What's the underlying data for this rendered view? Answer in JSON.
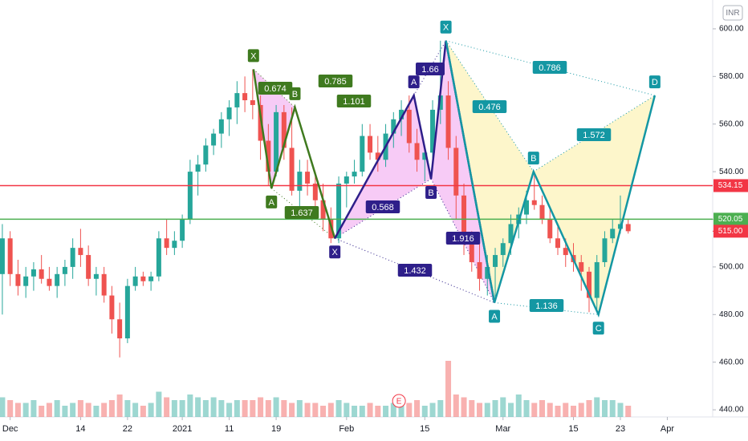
{
  "chart_data": {
    "type": "candlestick",
    "currency": "INR",
    "xlim": [
      -0.3,
      90.8
    ],
    "ylim": [
      437,
      612.1
    ],
    "yticks": [
      {
        "value": 600,
        "label": "600.00"
      },
      {
        "value": 580,
        "label": "580.00"
      },
      {
        "value": 560,
        "label": "560.00"
      },
      {
        "value": 540,
        "label": "540.00"
      },
      {
        "value": 520,
        "label": "520.00"
      },
      {
        "value": 500,
        "label": "500.00"
      },
      {
        "value": 480,
        "label": "480.00"
      },
      {
        "value": 460,
        "label": "460.00"
      },
      {
        "value": 440,
        "label": "440.00"
      }
    ],
    "xticks": [
      {
        "value": 1,
        "label": "Dec"
      },
      {
        "value": 10,
        "label": "14"
      },
      {
        "value": 16,
        "label": "22"
      },
      {
        "value": 23,
        "label": "2021"
      },
      {
        "value": 29,
        "label": "11"
      },
      {
        "value": 35,
        "label": "19"
      },
      {
        "value": 44,
        "label": "Feb"
      },
      {
        "value": 54,
        "label": "15"
      },
      {
        "value": 64,
        "label": "Mar"
      },
      {
        "value": 73,
        "label": "15"
      },
      {
        "value": 79,
        "label": "23"
      },
      {
        "value": 85,
        "label": "Apr"
      }
    ],
    "up_color": "#26a69a",
    "down_color": "#ef5350",
    "open": [
      497,
      512,
      497,
      492,
      496,
      499,
      495,
      492,
      497,
      500,
      508,
      505,
      495,
      497,
      488,
      478,
      470,
      492,
      496,
      494,
      496,
      512,
      508,
      511,
      520,
      540,
      543,
      551,
      556,
      562,
      567,
      573,
      570,
      568,
      553,
      540,
      565,
      550,
      532,
      540,
      535,
      528,
      520,
      512,
      535,
      538,
      540,
      555,
      548,
      545,
      556,
      562,
      566,
      552,
      545,
      548,
      566,
      572,
      550,
      530,
      510,
      502,
      495,
      500,
      505,
      510,
      518,
      522,
      528,
      526,
      520,
      512,
      508,
      505,
      502,
      498,
      487,
      502,
      512,
      516,
      518
    ],
    "high": [
      518,
      515,
      503,
      500,
      502,
      505,
      500,
      500,
      503,
      512,
      516,
      509,
      500,
      500,
      492,
      485,
      495,
      500,
      498,
      498,
      515,
      520,
      515,
      522,
      545,
      547,
      554,
      558,
      565,
      570,
      578,
      580,
      583,
      572,
      560,
      568,
      568,
      567,
      545,
      545,
      540,
      535,
      525,
      538,
      540,
      545,
      560,
      560,
      555,
      560,
      565,
      570,
      572,
      558,
      550,
      570,
      595,
      578,
      555,
      535,
      515,
      510,
      505,
      508,
      512,
      522,
      525,
      532,
      540,
      530,
      525,
      518,
      512,
      510,
      505,
      500,
      505,
      515,
      520,
      530,
      520
    ],
    "low": [
      480,
      492,
      488,
      487,
      490,
      493,
      490,
      487,
      492,
      495,
      500,
      492,
      488,
      485,
      472,
      462,
      468,
      490,
      492,
      490,
      494,
      505,
      505,
      508,
      518,
      530,
      540,
      547,
      550,
      555,
      560,
      565,
      562,
      545,
      534,
      538,
      545,
      530,
      525,
      530,
      520,
      515,
      510,
      510,
      525,
      535,
      538,
      545,
      540,
      542,
      550,
      555,
      548,
      540,
      536,
      545,
      560,
      545,
      520,
      505,
      498,
      490,
      488,
      486,
      500,
      505,
      512,
      518,
      524,
      518,
      510,
      505,
      500,
      498,
      490,
      481,
      482,
      500,
      510,
      514,
      514
    ],
    "close": [
      512,
      497,
      492,
      496,
      499,
      495,
      492,
      497,
      500,
      508,
      505,
      495,
      497,
      488,
      478,
      470,
      492,
      496,
      494,
      496,
      512,
      508,
      511,
      520,
      540,
      543,
      551,
      556,
      562,
      567,
      573,
      570,
      568,
      553,
      540,
      565,
      550,
      532,
      540,
      535,
      528,
      520,
      512,
      535,
      538,
      540,
      555,
      548,
      545,
      556,
      562,
      566,
      552,
      545,
      548,
      566,
      572,
      550,
      530,
      510,
      502,
      495,
      500,
      505,
      510,
      518,
      522,
      528,
      526,
      520,
      512,
      508,
      505,
      502,
      498,
      487,
      502,
      512,
      516,
      518,
      515
    ],
    "volume_lim": [
      0,
      40
    ],
    "volume": [
      3.5,
      3,
      2.5,
      2.5,
      3,
      2,
      2.5,
      3,
      2,
      2.5,
      3,
      2.5,
      2,
      2.5,
      3,
      4,
      3,
      2.5,
      2,
      2.5,
      4.5,
      3.5,
      3,
      3,
      4,
      3.5,
      3,
      3.5,
      3,
      2.5,
      3,
      3,
      3,
      3.5,
      3,
      3.5,
      3,
      2.5,
      3,
      2.5,
      2.5,
      2,
      2.5,
      3,
      2.5,
      2,
      2,
      2.5,
      2,
      2,
      2.5,
      2,
      2.5,
      3,
      2,
      2.5,
      3,
      10,
      4,
      3.5,
      3,
      2.5,
      2.5,
      3,
      3.5,
      2.5,
      4,
      3,
      2.5,
      3,
      2.5,
      2,
      2.5,
      2,
      2.5,
      3,
      3.5,
      3,
      3,
      2.5,
      2
    ],
    "hlines": [
      {
        "value": 534.15,
        "color": "#f23645"
      },
      {
        "value": 520.05,
        "color": "#4caf50"
      }
    ],
    "last_price": {
      "value": 515,
      "label": "515.00",
      "color": "#f23645"
    },
    "earnings": {
      "x": 50.7,
      "label": "E"
    },
    "patterns": [
      {
        "color": "#3f7a1f",
        "fill": "#f2a8f0",
        "points": [
          {
            "label": "X",
            "x": 32.1,
            "y": 583
          },
          {
            "label": "A",
            "x": 34.4,
            "y": 533
          },
          {
            "label": "B",
            "x": 37.4,
            "y": 567
          },
          {
            "label": null,
            "x": 42.5,
            "y": 512
          }
        ],
        "ratios": [
          "0.674",
          "0.785",
          "1.101",
          "1.637"
        ]
      },
      {
        "color": "#2e1f8a",
        "fill": "#f2a8f0",
        "points": [
          {
            "label": "X",
            "x": 42.5,
            "y": 512
          },
          {
            "label": "A",
            "x": 52.6,
            "y": 572
          },
          {
            "label": "B",
            "x": 54.8,
            "y": 537
          },
          {
            "label": null,
            "x": 56.7,
            "y": 595
          },
          {
            "label": null,
            "x": 62.9,
            "y": 485
          }
        ],
        "ratios": [
          "1.66",
          "0.568",
          "1.432",
          "1.916"
        ]
      },
      {
        "color": "#1497a3",
        "fill": "#fbf0a8",
        "points": [
          {
            "label": "X",
            "x": 56.7,
            "y": 595
          },
          {
            "label": "A",
            "x": 62.9,
            "y": 485
          },
          {
            "label": "B",
            "x": 67.9,
            "y": 540
          },
          {
            "label": "C",
            "x": 76.2,
            "y": 480
          },
          {
            "label": "D",
            "x": 83.4,
            "y": 572
          }
        ],
        "ratios": [
          "0.786",
          "0.476",
          "1.572",
          "1.136"
        ]
      }
    ]
  }
}
